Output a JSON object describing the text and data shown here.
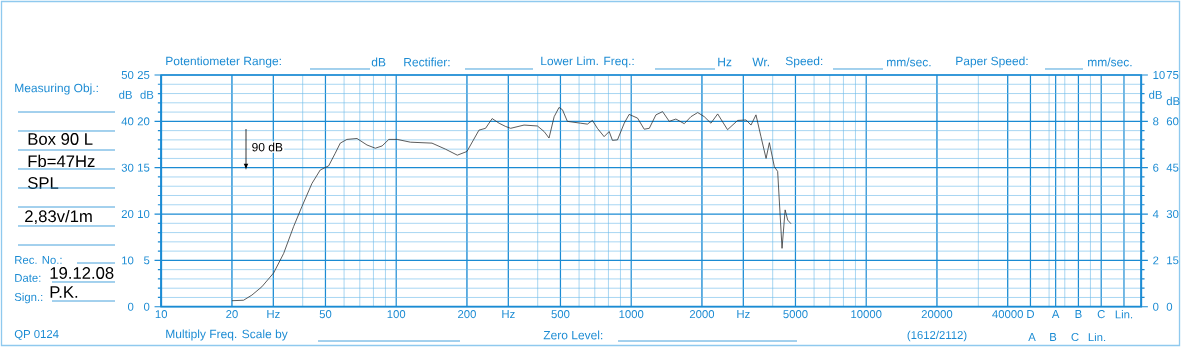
{
  "chart_data": {
    "type": "line",
    "log": "x",
    "grid": true,
    "annotations": [
      "Measuring Obj.:",
      "Box 90 L",
      "Fb=47Hz",
      "SPL",
      "2,83v/1m",
      "Rec.  No.:",
      "Date:",
      "19.12.08",
      "Sign.:",
      "P.K.",
      "QP  0124",
      "Potentiometer Range:",
      "dB",
      "Rectifier:",
      "Lower Lim. Freq.:",
      "Hz",
      "Wr.",
      "Speed:",
      "mm/sec.",
      "Paper Speed:",
      "mm/sec.",
      "Multiply Freq. Scale by",
      "Zero Level:",
      "(1612/2112)",
      "90 dB",
      "0",
      "15",
      "30",
      "45",
      "60",
      "75",
      "dB",
      "A",
      "B",
      "C",
      "Lin."
    ],
    "xlim": [
      10,
      148000
    ],
    "xticks": [
      10,
      20,
      {
        "value": 30,
        "label": "Hz"
      },
      50,
      100,
      200,
      {
        "value": 300,
        "label": "Hz"
      },
      500,
      1000,
      2000,
      {
        "value": 3000,
        "label": "Hz"
      },
      5000,
      10000,
      20000,
      40000,
      {
        "value": 50000,
        "label": "D"
      },
      {
        "value": 64000,
        "label": "A"
      },
      {
        "value": 80000,
        "label": "B"
      },
      {
        "value": 100000,
        "label": "C"
      },
      {
        "value": 125000,
        "label": "Lin."
      }
    ],
    "ylim": [
      0,
      50
    ],
    "yticks": [
      0,
      10,
      20,
      30,
      40,
      50
    ],
    "ylabel": "dB",
    "y2lim": [
      0,
      25
    ],
    "y2ticks": [
      0,
      5,
      10,
      15,
      20,
      25
    ],
    "y2label": "dB",
    "y3lim": [
      0,
      10
    ],
    "y3ticks": [
      0,
      2,
      4,
      6,
      8,
      10
    ],
    "y3label": "dB",
    "x": [
      20,
      22.4,
      24.3,
      26.8,
      30.1,
      33.2,
      36.6,
      39.7,
      43.8,
      47.5,
      51.6,
      55,
      57.8,
      61.7,
      68.1,
      75.1,
      81.5,
      87.1,
      93,
      101,
      115,
      142,
      162,
      182,
      200,
      225,
      240,
      256,
      274,
      292,
      307,
      350,
      399,
      426,
      447,
      470,
      493,
      510,
      535,
      610,
      651,
      684,
      718,
      767,
      806,
      832,
      874,
      934,
      980,
      1064,
      1136,
      1194,
      1274,
      1360,
      1452,
      1549,
      1682,
      1795,
      1919,
      2047,
      2184,
      2333,
      2570,
      2838,
      3081,
      3234,
      3396,
      3566,
      3749,
      3873,
      4066,
      4199,
      4384,
      4519,
      4634,
      4788
    ],
    "series": [
      {
        "color": "#333333",
        "values": [
          1.3,
          1.4,
          2.5,
          4.3,
          7.3,
          11.5,
          17.3,
          21.6,
          26.6,
          29.5,
          30.4,
          33.1,
          35.3,
          36.1,
          36.3,
          34.9,
          34.2,
          34.7,
          36.1,
          36.1,
          35.5,
          35.3,
          34.0,
          32.7,
          33.5,
          38.1,
          38.5,
          40.6,
          39.6,
          38.9,
          38.5,
          39.2,
          39.0,
          37.8,
          36.4,
          41.0,
          43.0,
          42.5,
          40.0,
          39.6,
          39.4,
          40.2,
          38.5,
          36.7,
          37.8,
          35.9,
          36.0,
          39.6,
          41.5,
          40.7,
          38.3,
          38.5,
          41.4,
          42.1,
          40.0,
          40.5,
          39.5,
          41.0,
          41.9,
          41.0,
          39.6,
          41.6,
          38.2,
          40.2,
          40.3,
          39.2,
          41.4,
          36.7,
          32.0,
          35.4,
          30.2,
          29.2,
          12.6,
          20.9,
          18.7,
          17.9
        ]
      }
    ]
  }
}
